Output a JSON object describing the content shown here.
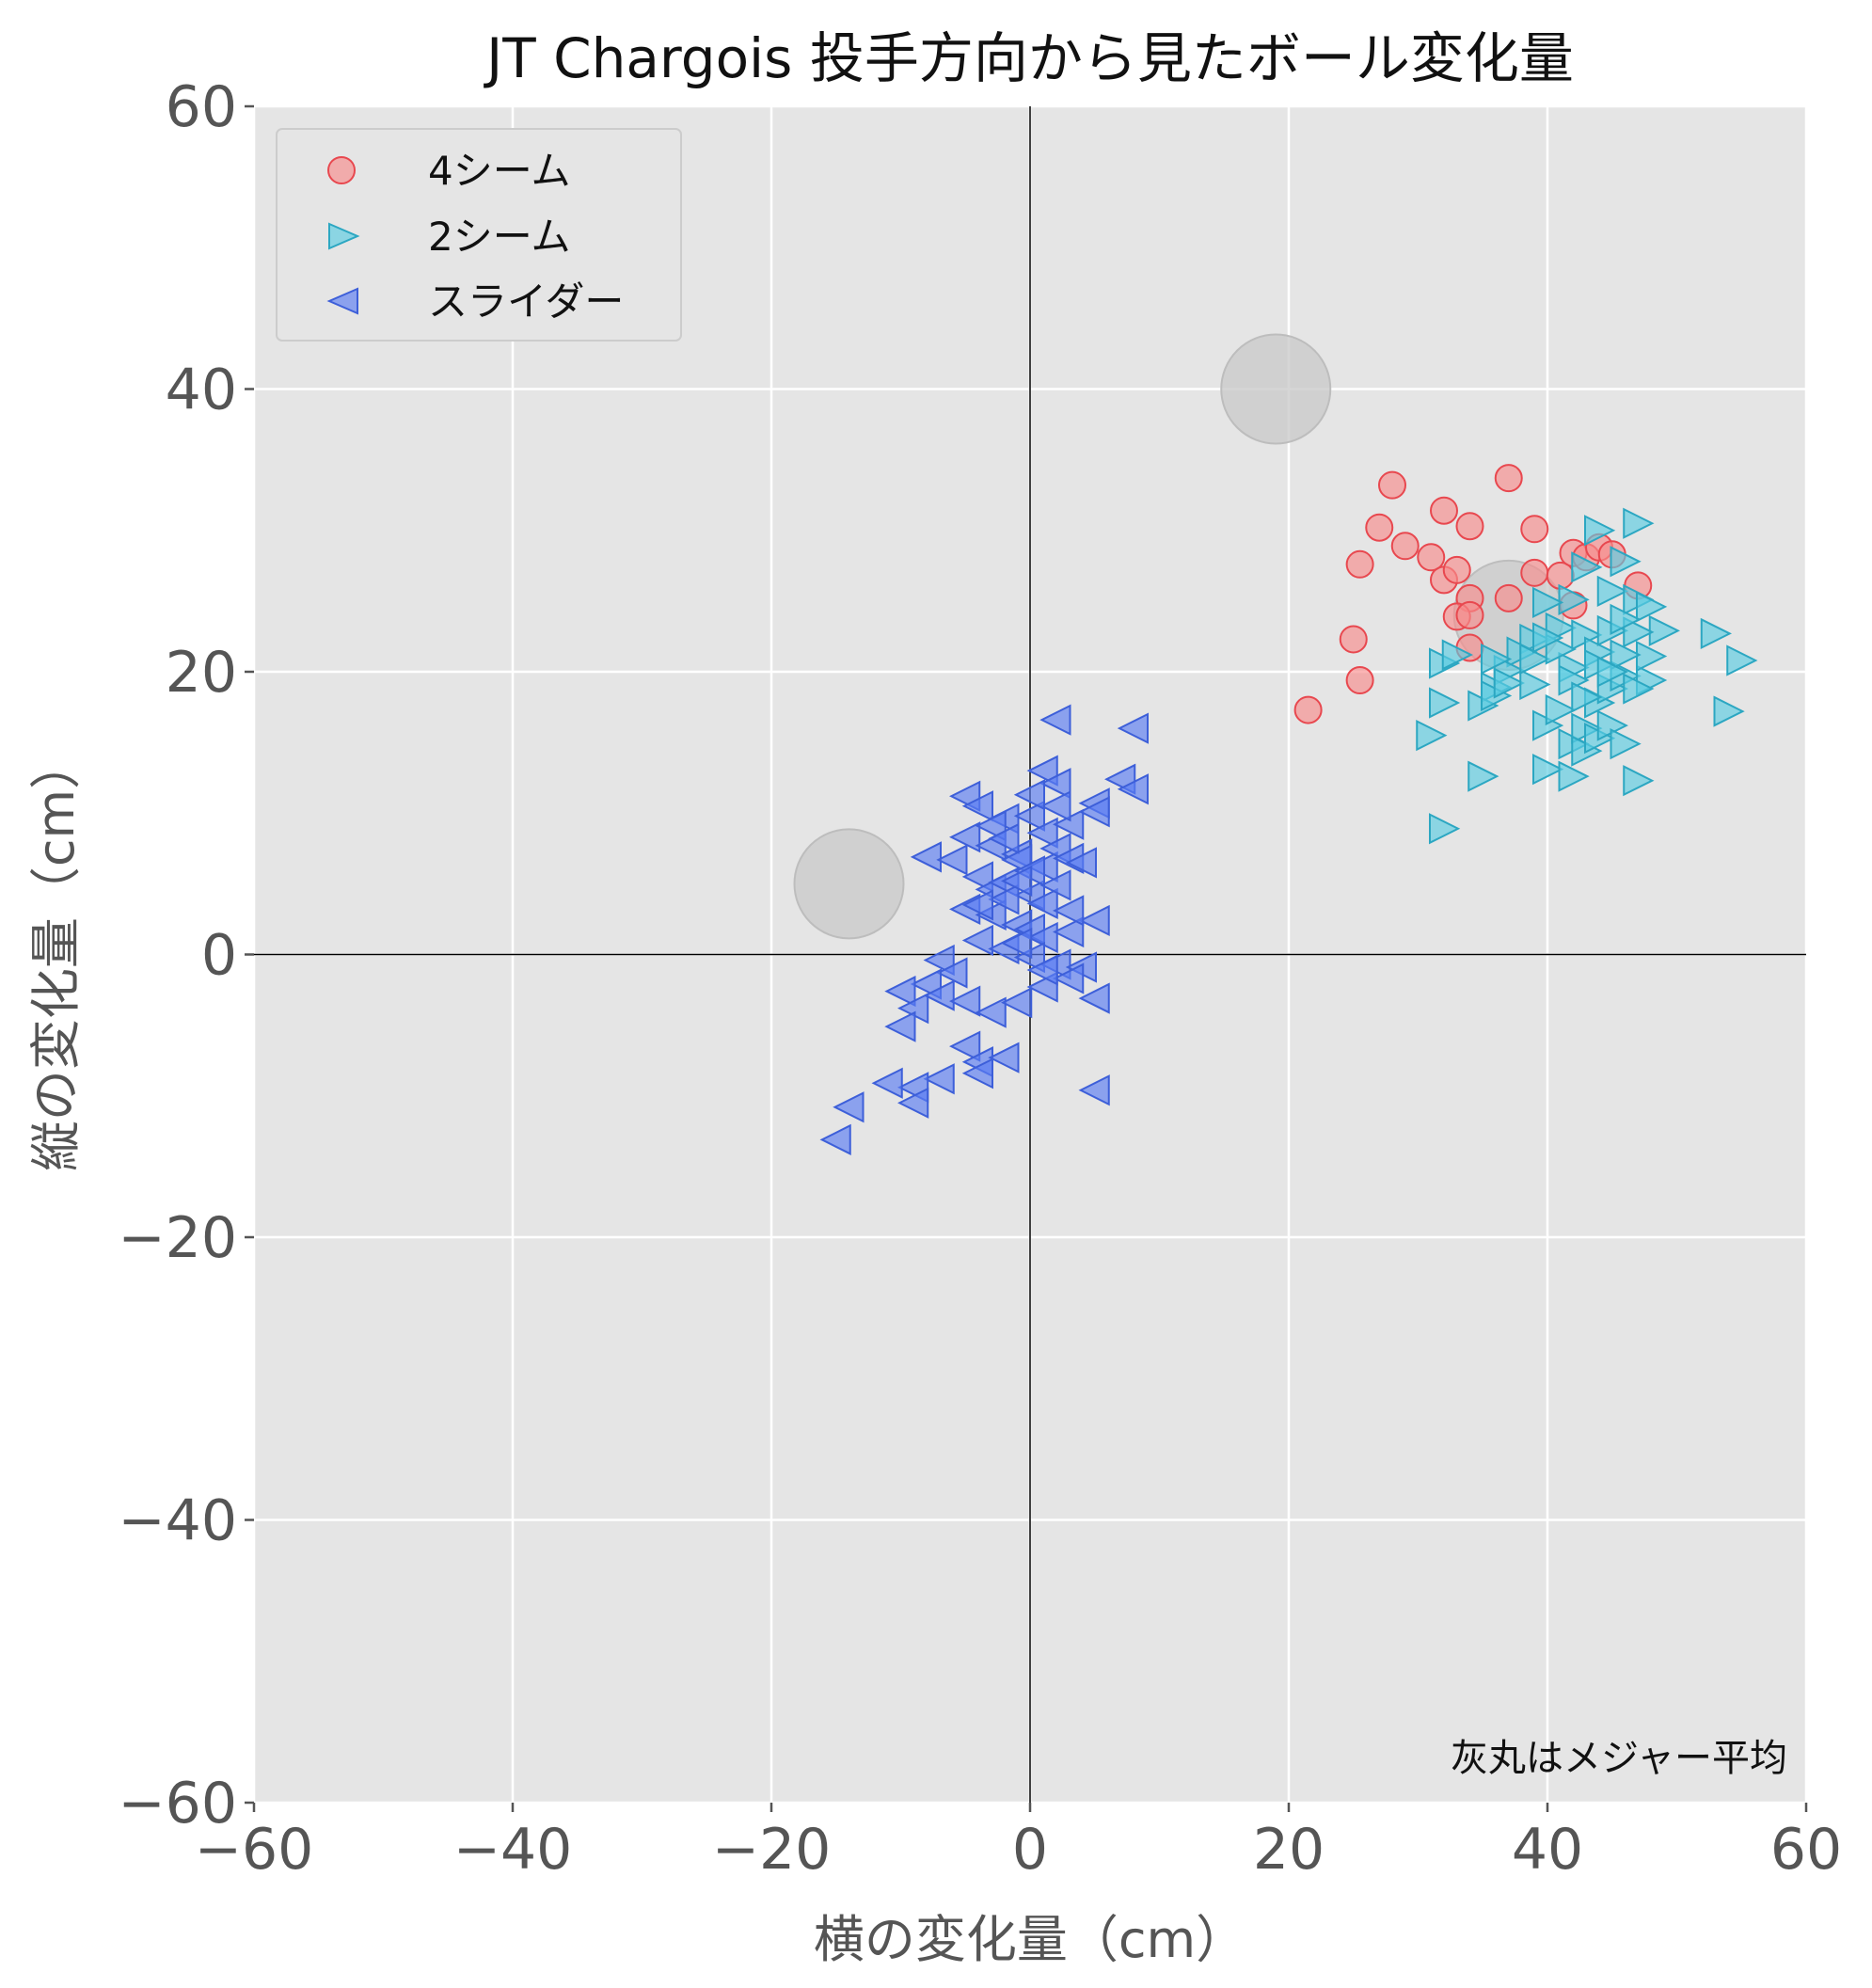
{
  "chart_data": {
    "type": "scatter",
    "title": "JT Chargois 投手方向から見たボール変化量",
    "xlabel": "横の変化量（cm）",
    "ylabel": "縦の変化量（cm）",
    "xlim": [
      -60,
      60
    ],
    "ylim": [
      -60,
      60
    ],
    "x_ticks": [
      "−60",
      "−40",
      "−20",
      "0",
      "20",
      "40",
      "60"
    ],
    "y_ticks": [
      "60",
      "40",
      "20",
      "0",
      "−20",
      "−40",
      "−60"
    ],
    "grid": true,
    "legend_position": "top-left",
    "annotation": "灰丸はメジャー平均",
    "league_average_points": [
      {
        "x": 19,
        "y": 40
      },
      {
        "x": 37,
        "y": 24
      },
      {
        "x": -14,
        "y": 5
      }
    ],
    "series": [
      {
        "name": "4シーム",
        "marker": "circle",
        "color": "#f88c8c",
        "edge_color": "#e8484f",
        "points": [
          [
            28,
            33.2
          ],
          [
            37,
            33.7
          ],
          [
            27,
            30.2
          ],
          [
            32,
            31.4
          ],
          [
            34,
            30.3
          ],
          [
            39,
            30.1
          ],
          [
            29,
            28.9
          ],
          [
            31,
            28.1
          ],
          [
            25.5,
            27.6
          ],
          [
            32,
            26.5
          ],
          [
            33,
            27.2
          ],
          [
            39,
            27
          ],
          [
            41,
            26.8
          ],
          [
            42,
            28.4
          ],
          [
            43,
            28.1
          ],
          [
            44,
            28.8
          ],
          [
            45,
            28.3
          ],
          [
            47,
            26.1
          ],
          [
            34,
            25.2
          ],
          [
            37,
            25.2
          ],
          [
            33,
            23.9
          ],
          [
            34,
            24
          ],
          [
            42,
            24.7
          ],
          [
            25,
            22.3
          ],
          [
            34,
            21.7
          ],
          [
            25.5,
            19.4
          ],
          [
            21.5,
            17.3
          ]
        ]
      },
      {
        "name": "2シーム",
        "marker": "triangle-right",
        "color": "#5bcde2",
        "edge_color": "#2ca7c2",
        "points": [
          [
            47,
            30.5
          ],
          [
            44,
            30
          ],
          [
            46,
            27.8
          ],
          [
            43,
            27.4
          ],
          [
            42,
            25.1
          ],
          [
            45,
            25.7
          ],
          [
            47,
            25.1
          ],
          [
            48,
            24.6
          ],
          [
            49,
            22.9
          ],
          [
            53,
            22.7
          ],
          [
            55,
            20.8
          ],
          [
            54,
            17.2
          ],
          [
            40,
            24.9
          ],
          [
            41,
            23.1
          ],
          [
            39,
            22.3
          ],
          [
            38,
            21.4
          ],
          [
            37,
            20.1
          ],
          [
            36,
            18.9
          ],
          [
            35,
            17.6
          ],
          [
            32,
            20.6
          ],
          [
            32,
            17.8
          ],
          [
            31,
            15.5
          ],
          [
            32,
            8.9
          ],
          [
            35,
            12.6
          ],
          [
            36,
            18.3
          ],
          [
            37,
            19.2
          ],
          [
            39,
            19.1
          ],
          [
            40,
            16.2
          ],
          [
            41,
            17.3
          ],
          [
            42,
            14.9
          ],
          [
            43,
            16
          ],
          [
            44,
            17.8
          ],
          [
            45,
            18.8
          ],
          [
            46,
            19.7
          ],
          [
            48,
            19.4
          ],
          [
            48,
            21.1
          ],
          [
            43,
            22.6
          ],
          [
            44,
            21.4
          ],
          [
            45,
            22.9
          ],
          [
            46,
            21.2
          ],
          [
            47,
            22.8
          ],
          [
            40,
            13.1
          ],
          [
            42,
            12.6
          ],
          [
            43,
            14.4
          ],
          [
            44,
            15.3
          ],
          [
            45,
            16.2
          ],
          [
            46,
            14.9
          ],
          [
            47,
            12.3
          ],
          [
            42,
            20.3
          ],
          [
            44,
            20.5
          ],
          [
            46,
            23.7
          ],
          [
            33,
            21.2
          ],
          [
            39,
            20.9
          ],
          [
            41,
            21.6
          ],
          [
            42,
            19.4
          ],
          [
            43,
            18.2
          ],
          [
            45,
            20
          ],
          [
            47,
            18.8
          ],
          [
            40,
            22.4
          ],
          [
            36,
            20.9
          ]
        ]
      },
      {
        "name": "スライダー",
        "marker": "triangle-left",
        "color": "#5a7cf2",
        "edge_color": "#3d5fd9",
        "points": [
          [
            2,
            16.6
          ],
          [
            8,
            16
          ],
          [
            1,
            13
          ],
          [
            2,
            12.1
          ],
          [
            5,
            10.7
          ],
          [
            7,
            12.4
          ],
          [
            8,
            11.7
          ],
          [
            -5,
            11.2
          ],
          [
            -4,
            10.5
          ],
          [
            -2,
            9.6
          ],
          [
            0,
            9.8
          ],
          [
            1,
            8.6
          ],
          [
            3,
            9.2
          ],
          [
            5,
            10.1
          ],
          [
            -8,
            6.9
          ],
          [
            -6,
            6.7
          ],
          [
            -5,
            8.3
          ],
          [
            -3,
            7.7
          ],
          [
            -1,
            7.1
          ],
          [
            1,
            6.2
          ],
          [
            2,
            7.5
          ],
          [
            3,
            6.8
          ],
          [
            4,
            6.5
          ],
          [
            -4,
            5.5
          ],
          [
            -3,
            4.6
          ],
          [
            -2,
            5.1
          ],
          [
            0,
            4.2
          ],
          [
            1,
            3.6
          ],
          [
            2,
            4.9
          ],
          [
            -5,
            3.2
          ],
          [
            -3,
            2.8
          ],
          [
            -1,
            2.1
          ],
          [
            0,
            1.8
          ],
          [
            1,
            1.2
          ],
          [
            3,
            1.6
          ],
          [
            5,
            2.4
          ],
          [
            -4,
            1
          ],
          [
            -2,
            0.4
          ],
          [
            0,
            -0.2
          ],
          [
            2,
            -0.7
          ],
          [
            4,
            -0.9
          ],
          [
            -7,
            -0.4
          ],
          [
            -6,
            -1.3
          ],
          [
            -8,
            -2.1
          ],
          [
            -10,
            -2.6
          ],
          [
            -9,
            -3.8
          ],
          [
            -7,
            -2.9
          ],
          [
            -5,
            -3.3
          ],
          [
            -3,
            -4.1
          ],
          [
            -1,
            -3.4
          ],
          [
            1,
            -2.3
          ],
          [
            3,
            -1.7
          ],
          [
            5,
            -3.1
          ],
          [
            -10,
            -5.1
          ],
          [
            -5,
            -6.5
          ],
          [
            -4,
            -7.6
          ],
          [
            -2,
            -7.3
          ],
          [
            -4,
            -8.4
          ],
          [
            -7,
            -8.8
          ],
          [
            -9,
            -9.4
          ],
          [
            -11,
            -9.1
          ],
          [
            -14,
            -10.8
          ],
          [
            -15,
            -13.1
          ],
          [
            -9,
            -10.5
          ],
          [
            5,
            -9.6
          ],
          [
            -1,
            6.7
          ],
          [
            0,
            5.9
          ],
          [
            -2,
            3.9
          ],
          [
            -4,
            3.5
          ],
          [
            -1,
            0.8
          ],
          [
            1,
            -1.1
          ],
          [
            2,
            10.5
          ],
          [
            0,
            11.3
          ],
          [
            -3,
            9.1
          ],
          [
            -1,
            5.2
          ],
          [
            3,
            3.1
          ],
          [
            -2,
            8.2
          ]
        ]
      }
    ]
  }
}
